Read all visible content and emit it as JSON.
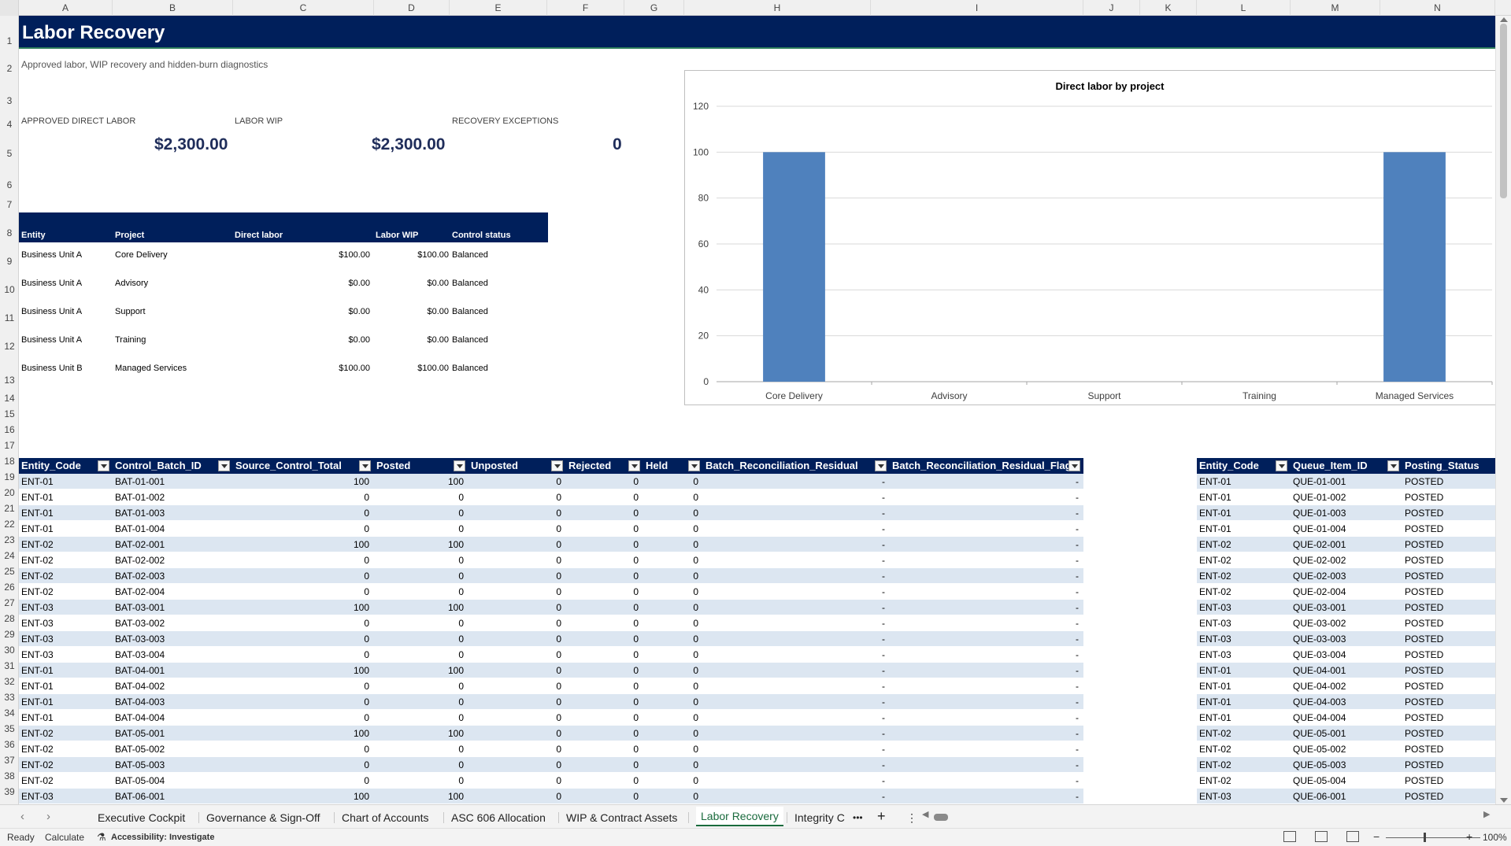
{
  "columns": [
    "A",
    "B",
    "C",
    "D",
    "E",
    "F",
    "G",
    "H",
    "I",
    "J",
    "K",
    "L",
    "M",
    "N"
  ],
  "rows": [
    "1",
    "2",
    "3",
    "4",
    "5",
    "6",
    "7",
    "8",
    "9",
    "10",
    "11",
    "12",
    "13",
    "14",
    "15",
    "16",
    "17",
    "18",
    "19",
    "20",
    "21",
    "22",
    "23",
    "24",
    "25",
    "26",
    "27",
    "28",
    "29",
    "30",
    "31",
    "32",
    "33",
    "34",
    "35",
    "36",
    "37",
    "38",
    "39"
  ],
  "sheet": {
    "title": "Labor Recovery",
    "subtitle": "Approved labor, WIP recovery and hidden-burn diagnostics"
  },
  "kpis": [
    {
      "label": "APPROVED DIRECT LABOR",
      "value": "$2,300.00"
    },
    {
      "label": "LABOR WIP",
      "value": "$2,300.00"
    },
    {
      "label": "RECOVERY EXCEPTIONS",
      "value": "0"
    }
  ],
  "summary": {
    "headers": [
      "Entity",
      "Project",
      "Direct labor",
      "Labor WIP",
      "Control status"
    ],
    "rows": [
      [
        "Business Unit A",
        "Core Delivery",
        "$100.00",
        "$100.00",
        "Balanced"
      ],
      [
        "Business Unit A",
        "Advisory",
        "$0.00",
        "$0.00",
        "Balanced"
      ],
      [
        "Business Unit A",
        "Support",
        "$0.00",
        "$0.00",
        "Balanced"
      ],
      [
        "Business Unit A",
        "Training",
        "$0.00",
        "$0.00",
        "Balanced"
      ],
      [
        "Business Unit B",
        "Managed Services",
        "$100.00",
        "$100.00",
        "Balanced"
      ]
    ]
  },
  "chart_data": {
    "type": "bar",
    "title": "Direct labor by project",
    "categories": [
      "Core Delivery",
      "Advisory",
      "Support",
      "Training",
      "Managed Services"
    ],
    "values": [
      100,
      0,
      0,
      0,
      100
    ],
    "ylim": [
      0,
      120
    ],
    "yticks": [
      0,
      20,
      40,
      60,
      80,
      100,
      120
    ],
    "grid": true,
    "color": "#4f81bd"
  },
  "batch_table": {
    "headers": [
      "Entity_Code",
      "Control_Batch_ID",
      "Source_Control_Total",
      "Posted",
      "Unposted",
      "Rejected",
      "Held",
      "Batch_Reconciliation_Residual",
      "Batch_Reconciliation_Residual_Flag"
    ],
    "rows": [
      [
        "ENT-01",
        "BAT-01-001",
        "100",
        "100",
        "0",
        "0",
        "0",
        "-",
        "-"
      ],
      [
        "ENT-01",
        "BAT-01-002",
        "0",
        "0",
        "0",
        "0",
        "0",
        "-",
        "-"
      ],
      [
        "ENT-01",
        "BAT-01-003",
        "0",
        "0",
        "0",
        "0",
        "0",
        "-",
        "-"
      ],
      [
        "ENT-01",
        "BAT-01-004",
        "0",
        "0",
        "0",
        "0",
        "0",
        "-",
        "-"
      ],
      [
        "ENT-02",
        "BAT-02-001",
        "100",
        "100",
        "0",
        "0",
        "0",
        "-",
        "-"
      ],
      [
        "ENT-02",
        "BAT-02-002",
        "0",
        "0",
        "0",
        "0",
        "0",
        "-",
        "-"
      ],
      [
        "ENT-02",
        "BAT-02-003",
        "0",
        "0",
        "0",
        "0",
        "0",
        "-",
        "-"
      ],
      [
        "ENT-02",
        "BAT-02-004",
        "0",
        "0",
        "0",
        "0",
        "0",
        "-",
        "-"
      ],
      [
        "ENT-03",
        "BAT-03-001",
        "100",
        "100",
        "0",
        "0",
        "0",
        "-",
        "-"
      ],
      [
        "ENT-03",
        "BAT-03-002",
        "0",
        "0",
        "0",
        "0",
        "0",
        "-",
        "-"
      ],
      [
        "ENT-03",
        "BAT-03-003",
        "0",
        "0",
        "0",
        "0",
        "0",
        "-",
        "-"
      ],
      [
        "ENT-03",
        "BAT-03-004",
        "0",
        "0",
        "0",
        "0",
        "0",
        "-",
        "-"
      ],
      [
        "ENT-01",
        "BAT-04-001",
        "100",
        "100",
        "0",
        "0",
        "0",
        "-",
        "-"
      ],
      [
        "ENT-01",
        "BAT-04-002",
        "0",
        "0",
        "0",
        "0",
        "0",
        "-",
        "-"
      ],
      [
        "ENT-01",
        "BAT-04-003",
        "0",
        "0",
        "0",
        "0",
        "0",
        "-",
        "-"
      ],
      [
        "ENT-01",
        "BAT-04-004",
        "0",
        "0",
        "0",
        "0",
        "0",
        "-",
        "-"
      ],
      [
        "ENT-02",
        "BAT-05-001",
        "100",
        "100",
        "0",
        "0",
        "0",
        "-",
        "-"
      ],
      [
        "ENT-02",
        "BAT-05-002",
        "0",
        "0",
        "0",
        "0",
        "0",
        "-",
        "-"
      ],
      [
        "ENT-02",
        "BAT-05-003",
        "0",
        "0",
        "0",
        "0",
        "0",
        "-",
        "-"
      ],
      [
        "ENT-02",
        "BAT-05-004",
        "0",
        "0",
        "0",
        "0",
        "0",
        "-",
        "-"
      ],
      [
        "ENT-03",
        "BAT-06-001",
        "100",
        "100",
        "0",
        "0",
        "0",
        "-",
        "-"
      ]
    ]
  },
  "queue_table": {
    "headers": [
      "Entity_Code",
      "Queue_Item_ID",
      "Posting_Status"
    ],
    "rows": [
      [
        "ENT-01",
        "QUE-01-001",
        "POSTED"
      ],
      [
        "ENT-01",
        "QUE-01-002",
        "POSTED"
      ],
      [
        "ENT-01",
        "QUE-01-003",
        "POSTED"
      ],
      [
        "ENT-01",
        "QUE-01-004",
        "POSTED"
      ],
      [
        "ENT-02",
        "QUE-02-001",
        "POSTED"
      ],
      [
        "ENT-02",
        "QUE-02-002",
        "POSTED"
      ],
      [
        "ENT-02",
        "QUE-02-003",
        "POSTED"
      ],
      [
        "ENT-02",
        "QUE-02-004",
        "POSTED"
      ],
      [
        "ENT-03",
        "QUE-03-001",
        "POSTED"
      ],
      [
        "ENT-03",
        "QUE-03-002",
        "POSTED"
      ],
      [
        "ENT-03",
        "QUE-03-003",
        "POSTED"
      ],
      [
        "ENT-03",
        "QUE-03-004",
        "POSTED"
      ],
      [
        "ENT-01",
        "QUE-04-001",
        "POSTED"
      ],
      [
        "ENT-01",
        "QUE-04-002",
        "POSTED"
      ],
      [
        "ENT-01",
        "QUE-04-003",
        "POSTED"
      ],
      [
        "ENT-01",
        "QUE-04-004",
        "POSTED"
      ],
      [
        "ENT-02",
        "QUE-05-001",
        "POSTED"
      ],
      [
        "ENT-02",
        "QUE-05-002",
        "POSTED"
      ],
      [
        "ENT-02",
        "QUE-05-003",
        "POSTED"
      ],
      [
        "ENT-02",
        "QUE-05-004",
        "POSTED"
      ],
      [
        "ENT-03",
        "QUE-06-001",
        "POSTED"
      ]
    ]
  },
  "tabs": {
    "items": [
      "Executive Cockpit",
      "Governance & Sign-Off",
      "Chart of Accounts",
      "ASC 606 Allocation",
      "WIP & Contract Assets",
      "Labor Recovery",
      "Integrity C"
    ],
    "active": "Labor Recovery",
    "more": "•••",
    "add": "+",
    "menu": "⋮"
  },
  "status": {
    "ready": "Ready",
    "calculate": "Calculate",
    "accessibility": "Accessibility: Investigate",
    "zoom": "100%"
  },
  "icons": {
    "prev_sheet": "chevron-left-icon",
    "next_sheet": "chevron-right-icon",
    "filter": "filter-dropdown-icon",
    "accessibility": "accessibility-icon"
  }
}
